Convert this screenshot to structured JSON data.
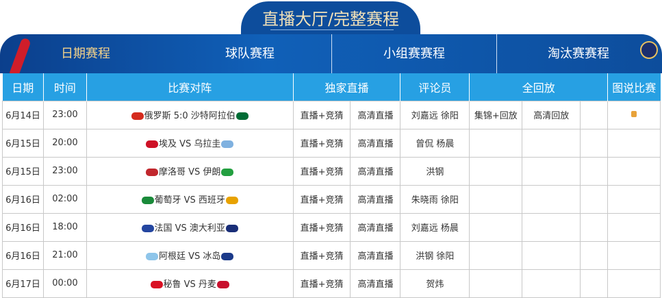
{
  "title": "直播大厅/完整赛程",
  "nav": [
    {
      "label": "日期赛程",
      "active": true
    },
    {
      "label": "球队赛程"
    },
    {
      "label": "小组赛赛程"
    },
    {
      "label": "淘汰赛赛程"
    }
  ],
  "colors": {
    "active_nav": "#f3d28a",
    "header_bg": "#27a0e3",
    "banner": "#0d4d9c"
  },
  "headers": [
    "日期",
    "时间",
    "比赛对阵",
    "独家直播",
    "评论员",
    "全回放",
    "图说比赛"
  ],
  "rows": [
    {
      "date": "6月14日",
      "time": "23:00",
      "match": "俄罗斯 5:0 沙特阿拉伯",
      "flags": [
        "#d52b1e",
        "#006c35"
      ],
      "live": "直播+竞猜",
      "hd": "高清直播",
      "commentators": "刘嘉远 徐阳",
      "replay1": "集锦+回放",
      "replay2": "高清回放",
      "photo_icon": "photo-icon"
    },
    {
      "date": "6月15日",
      "time": "20:00",
      "match": "埃及 VS 乌拉圭",
      "flags": [
        "#ce1126",
        "#7fb1e0"
      ],
      "live": "直播+竞猜",
      "hd": "高清直播",
      "commentators": "曾侃 杨晨"
    },
    {
      "date": "6月15日",
      "time": "23:00",
      "match": "摩洛哥 VS 伊朗",
      "flags": [
        "#c1272d",
        "#239f40"
      ],
      "live": "直播+竞猜",
      "hd": "高清直播",
      "commentators": "洪钢"
    },
    {
      "date": "6月16日",
      "time": "02:00",
      "match": "葡萄牙 VS 西班牙",
      "flags": [
        "#1a8a3a",
        "#e8a200"
      ],
      "live": "直播+竞猜",
      "hd": "高清直播",
      "commentators": "朱晓雨 徐阳"
    },
    {
      "date": "6月16日",
      "time": "18:00",
      "match": "法国 VS 澳大利亚",
      "flags": [
        "#2446a0",
        "#1a2e78"
      ],
      "live": "直播+竞猜",
      "hd": "高清直播",
      "commentators": "刘嘉远 杨晨"
    },
    {
      "date": "6月16日",
      "time": "21:00",
      "match": "阿根廷 VS 冰岛",
      "flags": [
        "#8ec5ea",
        "#1b3a8a"
      ],
      "live": "直播+竞猜",
      "hd": "高清直播",
      "commentators": "洪钢 徐阳"
    },
    {
      "date": "6月17日",
      "time": "00:00",
      "match": "秘鲁 VS 丹麦",
      "flags": [
        "#d91023",
        "#c8102e"
      ],
      "live": "直播+竞猜",
      "hd": "高清直播",
      "commentators": "贺炜"
    }
  ]
}
